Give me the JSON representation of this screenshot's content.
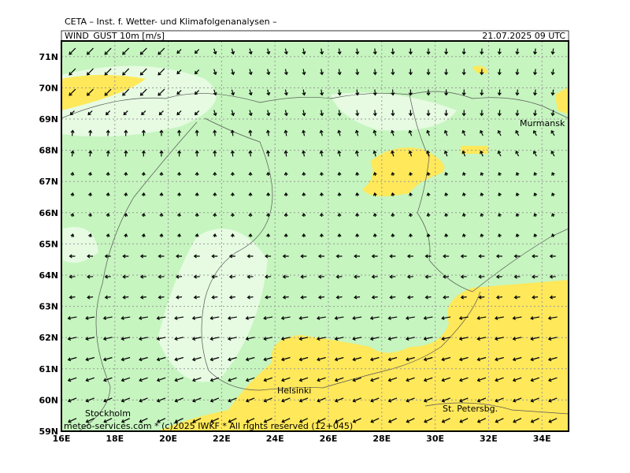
{
  "header": {
    "title": "CETA – Inst. f. Wetter- und Klimafolgenanalysen –",
    "field": "WIND_GUST 10m [m/s]",
    "time": "21.07.2025 09 UTC"
  },
  "axes": {
    "lat_labels": [
      "59N",
      "60N",
      "61N",
      "62N",
      "63N",
      "64N",
      "65N",
      "66N",
      "67N",
      "68N",
      "69N",
      "70N",
      "71N"
    ],
    "lon_labels": [
      "16E",
      "18E",
      "20E",
      "22E",
      "24E",
      "26E",
      "28E",
      "30E",
      "32E",
      "34E"
    ]
  },
  "places": {
    "murmansk": "Murmansk",
    "helsinki": "Helsinki",
    "st_petersburg": "St. Petersbg.",
    "stockholm": "Stockholm"
  },
  "footer": "meteo-services.com * (c)2025 IWKF * All rights reserved (12+045)"
}
